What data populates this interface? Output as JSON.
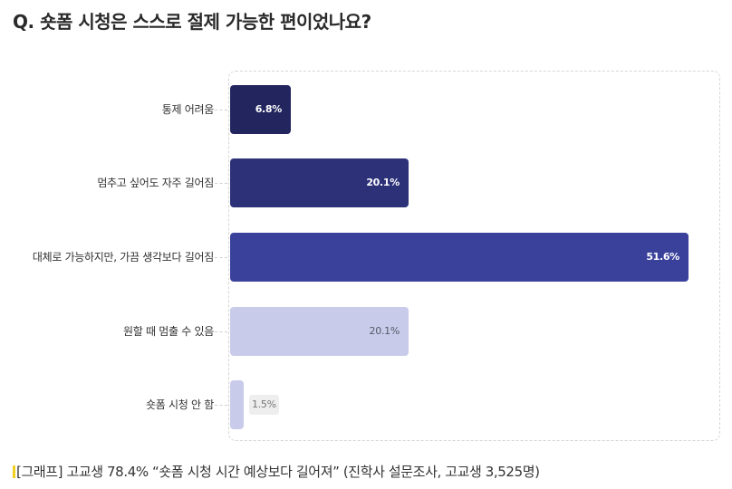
{
  "title": "Q. 숏폼 시청은 스스로 절제 가능한 편이었나요?",
  "chart_data": {
    "type": "bar",
    "orientation": "horizontal",
    "title": "Q. 숏폼 시청은 스스로 절제 가능한 편이었나요?",
    "xlabel": "",
    "ylabel": "",
    "unit": "%",
    "grid": false,
    "legend": null,
    "categories": [
      "통제 어려움",
      "멈추고 싶어도 자주 길어짐",
      "대체로 가능하지만, 가끔 생각보다 길어짐",
      "원할 때 멈출 수 있음",
      "숏폼 시청 안 함"
    ],
    "values": [
      6.8,
      20.1,
      51.6,
      20.1,
      1.5
    ],
    "labels": [
      "6.8%",
      "20.1%",
      "51.6%",
      "20.1%",
      "1.5%"
    ],
    "colors": [
      "#22255e",
      "#2c3178",
      "#3a419b",
      "#c8cbe9",
      "#c8cbe9"
    ]
  },
  "caption": "[그래프] 고교생 78.4% “숏폼 시청 시간 예상보다 길어져” (진학사 설문조사, 고교생 3,525명)"
}
